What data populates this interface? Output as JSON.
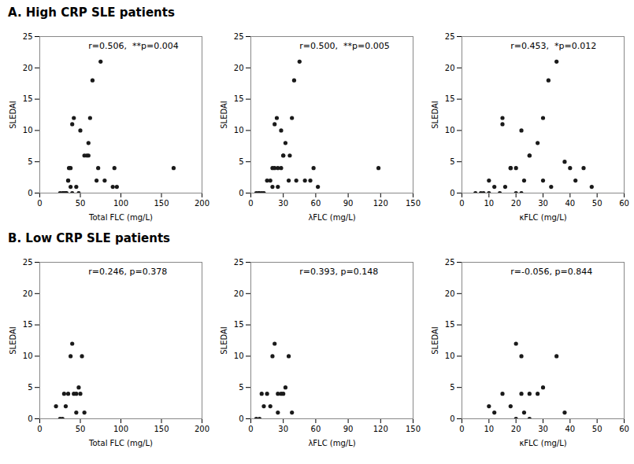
{
  "chart_data": [
    {
      "type": "scatter",
      "title": "A. High CRP SLE patients",
      "xlabel": "Total FLC (mg/L)",
      "ylabel": "SLEDAI",
      "xlim": [
        0,
        200
      ],
      "ylim": [
        0,
        25
      ],
      "xticks": [
        0,
        50,
        100,
        150,
        200
      ],
      "yticks": [
        0,
        5,
        10,
        15,
        20,
        25
      ],
      "annotations": [
        "r=0.506,  **p=0.004"
      ],
      "x": [
        25,
        28,
        30,
        32,
        33,
        35,
        35,
        36,
        38,
        38,
        40,
        40,
        42,
        45,
        48,
        50,
        55,
        58,
        60,
        60,
        62,
        65,
        70,
        72,
        75,
        80,
        90,
        92,
        95,
        165
      ],
      "values": [
        0,
        0,
        0,
        0,
        0,
        2,
        2,
        4,
        4,
        1,
        0,
        11,
        12,
        1,
        0,
        10,
        6,
        6,
        8,
        6,
        12,
        18,
        2,
        4,
        21,
        2,
        1,
        4,
        1,
        4
      ],
      "color": "#1a1a1a",
      "marker": "circle",
      "grid": false
    },
    {
      "type": "scatter",
      "xlabel": "λFLC (mg/L)",
      "ylabel": "SLEDAI",
      "xlim": [
        0,
        150
      ],
      "ylim": [
        0,
        25
      ],
      "xticks": [
        0,
        30,
        60,
        90,
        120,
        150
      ],
      "yticks": [
        0,
        5,
        10,
        15,
        20,
        25
      ],
      "annotations": [
        "r=0.500,  **p=0.005"
      ],
      "x": [
        5,
        7,
        8,
        10,
        12,
        15,
        18,
        20,
        20,
        22,
        22,
        24,
        25,
        25,
        28,
        28,
        30,
        30,
        32,
        35,
        36,
        38,
        40,
        42,
        45,
        50,
        55,
        58,
        62,
        118
      ],
      "values": [
        0,
        0,
        0,
        0,
        0,
        2,
        2,
        1,
        4,
        4,
        11,
        12,
        4,
        1,
        10,
        4,
        6,
        6,
        8,
        2,
        6,
        12,
        18,
        2,
        21,
        2,
        2,
        4,
        1,
        4
      ],
      "color": "#1a1a1a",
      "marker": "circle",
      "grid": false
    },
    {
      "type": "scatter",
      "xlabel": "κFLC (mg/L)",
      "ylabel": "SLEDAI",
      "xlim": [
        0,
        60
      ],
      "ylim": [
        0,
        25
      ],
      "xticks": [
        0,
        10,
        20,
        30,
        40,
        50,
        60
      ],
      "yticks": [
        0,
        5,
        10,
        15,
        20,
        25
      ],
      "annotations": [
        "r=0.453,  *p=0.012"
      ],
      "x": [
        5,
        7,
        8,
        10,
        10,
        12,
        14,
        15,
        15,
        16,
        18,
        18,
        20,
        20,
        22,
        22,
        23,
        25,
        25,
        28,
        30,
        30,
        32,
        33,
        35,
        38,
        40,
        42,
        45,
        48
      ],
      "values": [
        0,
        0,
        0,
        0,
        2,
        1,
        0,
        12,
        11,
        1,
        4,
        4,
        0,
        4,
        10,
        0,
        2,
        6,
        6,
        8,
        2,
        12,
        18,
        1,
        21,
        5,
        4,
        2,
        4,
        1
      ],
      "color": "#1a1a1a",
      "marker": "circle",
      "grid": false
    },
    {
      "type": "scatter",
      "title": "B. Low CRP SLE patients",
      "xlabel": "Total FLC (mg/L)",
      "ylabel": "SLEDAI",
      "xlim": [
        0,
        200
      ],
      "ylim": [
        0,
        25
      ],
      "xticks": [
        0,
        50,
        100,
        150,
        200
      ],
      "yticks": [
        0,
        5,
        10,
        15,
        20,
        25
      ],
      "annotations": [
        "r=0.246, p=0.378"
      ],
      "x": [
        20,
        25,
        28,
        30,
        32,
        35,
        38,
        40,
        42,
        45,
        45,
        48,
        50,
        52,
        55
      ],
      "values": [
        2,
        0,
        0,
        4,
        2,
        4,
        10,
        12,
        4,
        4,
        1,
        5,
        4,
        10,
        1
      ],
      "color": "#1a1a1a",
      "marker": "circle",
      "grid": false
    },
    {
      "type": "scatter",
      "xlabel": "λFLC (mg/L)",
      "ylabel": "SLEDAI",
      "xlim": [
        0,
        150
      ],
      "ylim": [
        0,
        25
      ],
      "xticks": [
        0,
        30,
        60,
        90,
        120,
        150
      ],
      "yticks": [
        0,
        5,
        10,
        15,
        20,
        25
      ],
      "annotations": [
        "r=0.393, p=0.148"
      ],
      "x": [
        5,
        8,
        10,
        12,
        15,
        18,
        20,
        22,
        25,
        25,
        28,
        30,
        32,
        35,
        38
      ],
      "values": [
        0,
        0,
        4,
        2,
        4,
        2,
        10,
        12,
        4,
        1,
        4,
        4,
        5,
        10,
        1
      ],
      "color": "#1a1a1a",
      "marker": "circle",
      "grid": false
    },
    {
      "type": "scatter",
      "xlabel": "κFLC (mg/L)",
      "ylabel": "SLEDAI",
      "xlim": [
        0,
        60
      ],
      "ylim": [
        0,
        25
      ],
      "xticks": [
        0,
        10,
        20,
        30,
        40,
        50,
        60
      ],
      "yticks": [
        0,
        5,
        10,
        15,
        20,
        25
      ],
      "annotations": [
        "r=-0.056, p=0.844"
      ],
      "x": [
        10,
        12,
        15,
        18,
        20,
        20,
        22,
        22,
        23,
        25,
        25,
        28,
        30,
        35,
        38
      ],
      "values": [
        2,
        1,
        4,
        2,
        0,
        12,
        10,
        4,
        1,
        4,
        0,
        4,
        5,
        10,
        1
      ],
      "color": "#1a1a1a",
      "marker": "circle",
      "grid": false
    }
  ]
}
